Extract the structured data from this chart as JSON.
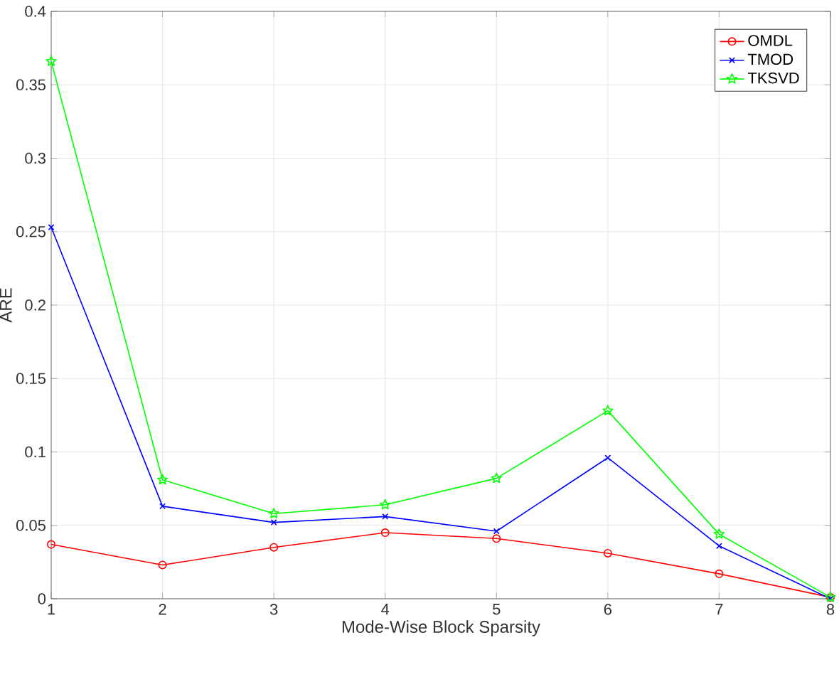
{
  "chart_data": {
    "type": "line",
    "xlabel": "Mode-Wise Block Sparsity",
    "ylabel": "ARE",
    "x": [
      1,
      2,
      3,
      4,
      5,
      6,
      7,
      8
    ],
    "series": [
      {
        "name": "OMDL",
        "color": "#ff0000",
        "marker": "circle",
        "values": [
          0.037,
          0.023,
          0.035,
          0.045,
          0.041,
          0.031,
          0.017,
          0.001
        ]
      },
      {
        "name": "TMOD",
        "color": "#0000ff",
        "marker": "cross",
        "values": [
          0.253,
          0.063,
          0.052,
          0.056,
          0.046,
          0.096,
          0.036,
          0.0
        ]
      },
      {
        "name": "TKSVD",
        "color": "#00ff00",
        "marker": "star",
        "values": [
          0.366,
          0.081,
          0.058,
          0.064,
          0.082,
          0.128,
          0.044,
          0.001
        ]
      }
    ],
    "xlim": [
      1,
      8
    ],
    "ylim": [
      0,
      0.4
    ],
    "xticks": [
      1,
      2,
      3,
      4,
      5,
      6,
      7,
      8
    ],
    "yticks": [
      0,
      0.05,
      0.1,
      0.15,
      0.2,
      0.25,
      0.3,
      0.35,
      0.4
    ],
    "grid": true,
    "legend": "top right",
    "line_style": "solid"
  }
}
